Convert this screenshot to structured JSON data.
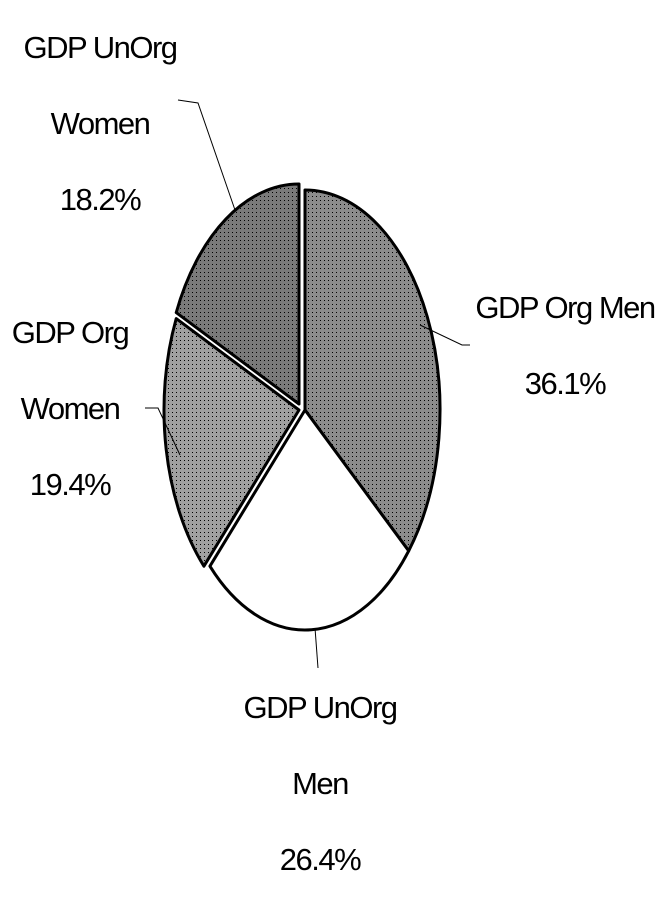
{
  "chart_data": {
    "type": "pie",
    "categories": [
      "GDP Org Men",
      "GDP UnOrg Men",
      "GDP Org Women",
      "GDP UnOrg Women"
    ],
    "values": [
      36.1,
      26.4,
      19.4,
      18.2
    ],
    "value_labels": [
      "36.1%",
      "26.4%",
      "19.4%",
      "18.2%"
    ],
    "colors": [
      "#8c8c8c",
      "#ffffff",
      "#a0a0a0",
      "#7a7a7a"
    ],
    "start_angle": 0,
    "direction": "clockwise"
  }
}
